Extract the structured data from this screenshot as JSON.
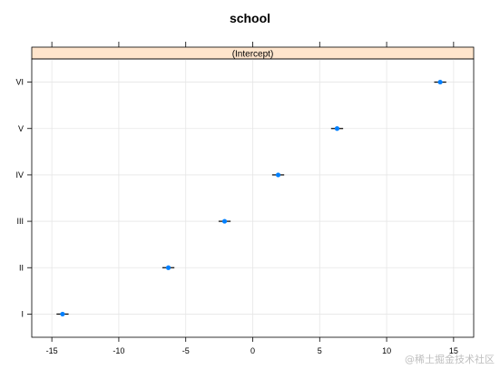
{
  "chart_data": {
    "type": "scatter",
    "title": "school",
    "strip_label": "(Intercept)",
    "categories": [
      "I",
      "II",
      "III",
      "IV",
      "V",
      "VI"
    ],
    "values": [
      -14.2,
      -6.3,
      -2.1,
      1.9,
      6.3,
      14.0
    ],
    "interval_half_width": [
      0.45,
      0.45,
      0.45,
      0.45,
      0.45,
      0.45
    ],
    "xlim": [
      -16.5,
      16.5
    ],
    "x_ticks": [
      -15,
      -10,
      -5,
      0,
      5,
      10,
      15
    ],
    "x_tick_labels": [
      "-15",
      "-10",
      "-5",
      "0",
      "5",
      "10",
      "15"
    ],
    "grid": true,
    "point_color": "#0080ff",
    "strip_color": "#ffe5cc"
  },
  "watermark": "@稀土掘金技术社区"
}
